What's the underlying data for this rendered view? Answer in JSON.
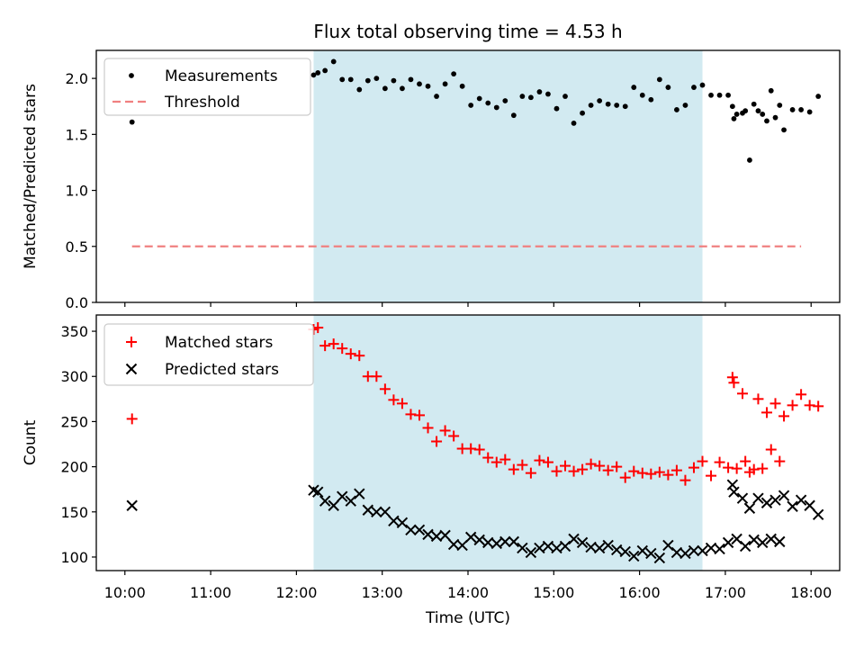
{
  "figure": {
    "title": "Flux total observing time = 4.53 h",
    "shaded_interval": [
      "12:12",
      "16:44"
    ],
    "colors": {
      "shade": "#add8e6",
      "measurements": "#000000",
      "threshold": "#f08080",
      "matched": "#ff0000",
      "predicted": "#000000"
    }
  },
  "chart_data": [
    {
      "type": "scatter",
      "ylabel": "Matched/Predicted stars",
      "xlabel": "",
      "xlim": [
        "09:40",
        "18:20"
      ],
      "ylim": [
        0,
        2.25
      ],
      "yticks": [
        0.0,
        0.5,
        1.0,
        1.5,
        2.0
      ],
      "ytick_labels": [
        "0.0",
        "0.5",
        "1.0",
        "1.5",
        "2.0"
      ],
      "x_tick_labels_shown": false,
      "grid": false,
      "legend": "upper left",
      "legend_entries": [
        "Measurements",
        "Threshold"
      ],
      "threshold": {
        "name": "Threshold",
        "value": 0.5,
        "x_range": [
          "10:05",
          "17:53"
        ]
      },
      "series": [
        {
          "name": "Measurements",
          "marker": "dot",
          "points": [
            [
              "10:05",
              1.61
            ],
            [
              "12:12",
              2.03
            ],
            [
              "12:15",
              2.05
            ],
            [
              "12:20",
              2.07
            ],
            [
              "12:26",
              2.15
            ],
            [
              "12:32",
              1.99
            ],
            [
              "12:38",
              1.99
            ],
            [
              "12:44",
              1.9
            ],
            [
              "12:50",
              1.98
            ],
            [
              "12:56",
              2.0
            ],
            [
              "13:02",
              1.91
            ],
            [
              "13:08",
              1.98
            ],
            [
              "13:14",
              1.91
            ],
            [
              "13:20",
              1.99
            ],
            [
              "13:26",
              1.95
            ],
            [
              "13:32",
              1.93
            ],
            [
              "13:38",
              1.84
            ],
            [
              "13:44",
              1.95
            ],
            [
              "13:50",
              2.04
            ],
            [
              "13:56",
              1.93
            ],
            [
              "14:02",
              1.76
            ],
            [
              "14:08",
              1.82
            ],
            [
              "14:14",
              1.78
            ],
            [
              "14:20",
              1.74
            ],
            [
              "14:26",
              1.8
            ],
            [
              "14:32",
              1.67
            ],
            [
              "14:38",
              1.84
            ],
            [
              "14:44",
              1.83
            ],
            [
              "14:50",
              1.88
            ],
            [
              "14:56",
              1.86
            ],
            [
              "15:02",
              1.73
            ],
            [
              "15:08",
              1.84
            ],
            [
              "15:14",
              1.6
            ],
            [
              "15:20",
              1.69
            ],
            [
              "15:26",
              1.76
            ],
            [
              "15:32",
              1.8
            ],
            [
              "15:38",
              1.77
            ],
            [
              "15:44",
              1.76
            ],
            [
              "15:50",
              1.75
            ],
            [
              "15:56",
              1.92
            ],
            [
              "16:02",
              1.85
            ],
            [
              "16:08",
              1.81
            ],
            [
              "16:14",
              1.99
            ],
            [
              "16:20",
              1.92
            ],
            [
              "16:26",
              1.72
            ],
            [
              "16:32",
              1.76
            ],
            [
              "16:38",
              1.92
            ],
            [
              "16:44",
              1.94
            ],
            [
              "16:50",
              1.85
            ],
            [
              "16:56",
              1.85
            ],
            [
              "17:02",
              1.85
            ],
            [
              "17:08",
              1.68
            ],
            [
              "17:14",
              1.71
            ],
            [
              "17:20",
              1.77
            ],
            [
              "17:26",
              1.68
            ],
            [
              "17:32",
              1.89
            ],
            [
              "17:38",
              1.76
            ],
            [
              "17:05",
              1.75
            ],
            [
              "17:06",
              1.64
            ],
            [
              "17:12",
              1.69
            ],
            [
              "17:17",
              1.27
            ],
            [
              "17:23",
              1.71
            ],
            [
              "17:29",
              1.62
            ],
            [
              "17:35",
              1.65
            ],
            [
              "17:41",
              1.54
            ],
            [
              "17:47",
              1.72
            ],
            [
              "17:53",
              1.72
            ],
            [
              "17:59",
              1.7
            ],
            [
              "18:05",
              1.84
            ]
          ]
        }
      ]
    },
    {
      "type": "scatter",
      "ylabel": "Count",
      "xlabel": "Time (UTC)",
      "xlim": [
        "09:40",
        "18:20"
      ],
      "ylim": [
        85,
        368
      ],
      "yticks": [
        100,
        150,
        200,
        250,
        300,
        350
      ],
      "ytick_labels": [
        "100",
        "150",
        "200",
        "250",
        "300",
        "350"
      ],
      "x_ticks": [
        "10:00",
        "11:00",
        "12:00",
        "13:00",
        "14:00",
        "15:00",
        "16:00",
        "17:00",
        "18:00"
      ],
      "x_tick_labels": [
        "10:00",
        "11:00",
        "12:00",
        "13:00",
        "14:00",
        "15:00",
        "16:00",
        "17:00",
        "18:00"
      ],
      "grid": false,
      "legend": "upper left",
      "legend_entries": [
        "Matched stars",
        "Predicted stars"
      ],
      "series": [
        {
          "name": "Matched stars",
          "marker": "plus",
          "points": [
            [
              "10:05",
              253
            ],
            [
              "12:12",
              352
            ],
            [
              "12:15",
              354
            ],
            [
              "12:20",
              334
            ],
            [
              "12:26",
              336
            ],
            [
              "12:32",
              331
            ],
            [
              "12:38",
              325
            ],
            [
              "12:44",
              323
            ],
            [
              "12:50",
              300
            ],
            [
              "12:56",
              300
            ],
            [
              "13:02",
              286
            ],
            [
              "13:08",
              274
            ],
            [
              "13:14",
              270
            ],
            [
              "13:20",
              258
            ],
            [
              "13:26",
              257
            ],
            [
              "13:32",
              243
            ],
            [
              "13:38",
              228
            ],
            [
              "13:44",
              240
            ],
            [
              "13:50",
              234
            ],
            [
              "13:56",
              220
            ],
            [
              "14:02",
              220
            ],
            [
              "14:08",
              219
            ],
            [
              "14:14",
              210
            ],
            [
              "14:20",
              205
            ],
            [
              "14:26",
              208
            ],
            [
              "14:32",
              197
            ],
            [
              "14:38",
              202
            ],
            [
              "14:44",
              193
            ],
            [
              "14:50",
              207
            ],
            [
              "14:56",
              205
            ],
            [
              "15:02",
              195
            ],
            [
              "15:08",
              201
            ],
            [
              "15:14",
              195
            ],
            [
              "15:20",
              197
            ],
            [
              "15:26",
              203
            ],
            [
              "15:32",
              201
            ],
            [
              "15:38",
              196
            ],
            [
              "15:44",
              200
            ],
            [
              "15:50",
              188
            ],
            [
              "15:56",
              195
            ],
            [
              "16:02",
              193
            ],
            [
              "16:08",
              192
            ],
            [
              "16:14",
              194
            ],
            [
              "16:20",
              191
            ],
            [
              "16:26",
              196
            ],
            [
              "16:32",
              185
            ],
            [
              "16:38",
              199
            ],
            [
              "16:44",
              206
            ],
            [
              "16:50",
              190
            ],
            [
              "16:56",
              205
            ],
            [
              "17:02",
              199
            ],
            [
              "17:08",
              198
            ],
            [
              "17:14",
              206
            ],
            [
              "17:20",
              197
            ],
            [
              "17:26",
              198
            ],
            [
              "17:32",
              219
            ],
            [
              "17:38",
              206
            ],
            [
              "17:05",
              299
            ],
            [
              "17:06",
              293
            ],
            [
              "17:12",
              281
            ],
            [
              "17:17",
              194
            ],
            [
              "17:23",
              275
            ],
            [
              "17:29",
              260
            ],
            [
              "17:35",
              270
            ],
            [
              "17:41",
              256
            ],
            [
              "17:47",
              268
            ],
            [
              "17:53",
              280
            ],
            [
              "17:59",
              268
            ],
            [
              "18:05",
              267
            ]
          ]
        },
        {
          "name": "Predicted stars",
          "marker": "x",
          "points": [
            [
              "10:05",
              157
            ],
            [
              "12:12",
              174
            ],
            [
              "12:15",
              172
            ],
            [
              "12:20",
              162
            ],
            [
              "12:26",
              157
            ],
            [
              "12:32",
              167
            ],
            [
              "12:38",
              162
            ],
            [
              "12:44",
              170
            ],
            [
              "12:50",
              152
            ],
            [
              "12:56",
              150
            ],
            [
              "13:02",
              150
            ],
            [
              "13:08",
              140
            ],
            [
              "13:14",
              138
            ],
            [
              "13:20",
              130
            ],
            [
              "13:26",
              130
            ],
            [
              "13:32",
              125
            ],
            [
              "13:38",
              123
            ],
            [
              "13:44",
              124
            ],
            [
              "13:50",
              114
            ],
            [
              "13:56",
              113
            ],
            [
              "14:02",
              122
            ],
            [
              "14:08",
              119
            ],
            [
              "14:14",
              116
            ],
            [
              "14:20",
              115
            ],
            [
              "14:26",
              117
            ],
            [
              "14:32",
              117
            ],
            [
              "14:38",
              110
            ],
            [
              "14:44",
              105
            ],
            [
              "14:50",
              110
            ],
            [
              "14:56",
              112
            ],
            [
              "15:02",
              110
            ],
            [
              "15:08",
              112
            ],
            [
              "15:14",
              120
            ],
            [
              "15:20",
              116
            ],
            [
              "15:26",
              111
            ],
            [
              "15:32",
              110
            ],
            [
              "15:38",
              113
            ],
            [
              "15:44",
              108
            ],
            [
              "15:50",
              106
            ],
            [
              "15:56",
              101
            ],
            [
              "16:02",
              107
            ],
            [
              "16:08",
              104
            ],
            [
              "16:14",
              99
            ],
            [
              "16:20",
              113
            ],
            [
              "16:26",
              105
            ],
            [
              "16:32",
              104
            ],
            [
              "16:38",
              107
            ],
            [
              "16:44",
              107
            ],
            [
              "16:50",
              110
            ],
            [
              "16:56",
              109
            ],
            [
              "17:02",
              116
            ],
            [
              "17:08",
              120
            ],
            [
              "17:14",
              112
            ],
            [
              "17:20",
              119
            ],
            [
              "17:26",
              116
            ],
            [
              "17:32",
              120
            ],
            [
              "17:38",
              117
            ],
            [
              "17:05",
              180
            ],
            [
              "17:06",
              172
            ],
            [
              "17:12",
              165
            ],
            [
              "17:17",
              154
            ],
            [
              "17:23",
              165
            ],
            [
              "17:29",
              160
            ],
            [
              "17:35",
              163
            ],
            [
              "17:41",
              168
            ],
            [
              "17:47",
              156
            ],
            [
              "17:53",
              163
            ],
            [
              "17:59",
              157
            ],
            [
              "18:05",
              147
            ]
          ]
        }
      ]
    }
  ]
}
